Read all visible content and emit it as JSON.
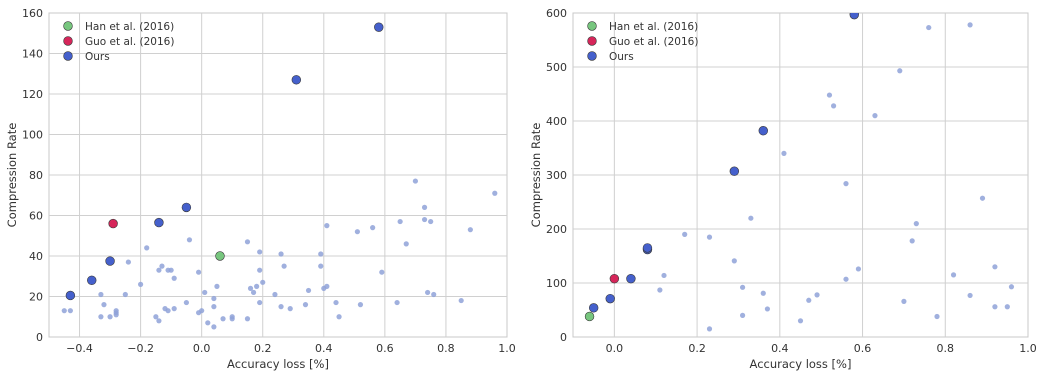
{
  "chart_data": [
    {
      "type": "scatter",
      "xlabel": "Accuracy loss [%]",
      "ylabel": "Compression Rate",
      "xlim": [
        -0.5,
        1.0
      ],
      "ylim": [
        0,
        160
      ],
      "xticks": [
        -0.4,
        -0.2,
        0.0,
        0.2,
        0.4,
        0.6,
        0.8,
        1.0
      ],
      "xtick_labels": [
        "−0.4",
        "−0.2",
        "0.0",
        "0.2",
        "0.4",
        "0.6",
        "0.8",
        "1.0"
      ],
      "yticks": [
        0,
        20,
        40,
        60,
        80,
        100,
        120,
        140,
        160
      ],
      "ytick_labels": [
        "0",
        "20",
        "40",
        "60",
        "80",
        "100",
        "120",
        "140",
        "160"
      ],
      "grid": true,
      "legend_position": "top-left",
      "legend": [
        {
          "label": "Han et al. (2016)",
          "color": "#77c67e"
        },
        {
          "label": "Guo et al. (2016)",
          "color": "#d6265a"
        },
        {
          "label": "Ours",
          "color": "#4560cc"
        }
      ],
      "background_points_color": "#8fa2d8",
      "background_points": [
        [
          -0.45,
          13
        ],
        [
          -0.43,
          13
        ],
        [
          -0.33,
          21
        ],
        [
          -0.32,
          16
        ],
        [
          -0.33,
          10
        ],
        [
          -0.3,
          10
        ],
        [
          -0.28,
          12
        ],
        [
          -0.28,
          11
        ],
        [
          -0.28,
          13
        ],
        [
          -0.25,
          21
        ],
        [
          -0.24,
          37
        ],
        [
          -0.2,
          26
        ],
        [
          -0.18,
          44
        ],
        [
          -0.15,
          10
        ],
        [
          -0.14,
          8
        ],
        [
          -0.14,
          33
        ],
        [
          -0.13,
          35
        ],
        [
          -0.12,
          14
        ],
        [
          -0.11,
          33
        ],
        [
          -0.11,
          13
        ],
        [
          -0.1,
          33
        ],
        [
          -0.09,
          29
        ],
        [
          -0.09,
          14
        ],
        [
          -0.05,
          17
        ],
        [
          -0.04,
          48
        ],
        [
          -0.01,
          32
        ],
        [
          -0.01,
          12
        ],
        [
          0.0,
          13
        ],
        [
          0.01,
          22
        ],
        [
          0.02,
          7
        ],
        [
          0.04,
          5
        ],
        [
          0.04,
          15
        ],
        [
          0.04,
          19
        ],
        [
          0.05,
          25
        ],
        [
          0.07,
          9
        ],
        [
          0.1,
          10
        ],
        [
          0.1,
          9
        ],
        [
          0.15,
          47
        ],
        [
          0.15,
          9
        ],
        [
          0.16,
          24
        ],
        [
          0.17,
          22
        ],
        [
          0.18,
          25
        ],
        [
          0.19,
          42
        ],
        [
          0.19,
          33
        ],
        [
          0.19,
          17
        ],
        [
          0.2,
          27
        ],
        [
          0.24,
          21
        ],
        [
          0.26,
          41
        ],
        [
          0.26,
          15
        ],
        [
          0.27,
          35
        ],
        [
          0.29,
          14
        ],
        [
          0.34,
          16
        ],
        [
          0.35,
          23
        ],
        [
          0.39,
          41
        ],
        [
          0.39,
          35
        ],
        [
          0.4,
          24
        ],
        [
          0.41,
          55
        ],
        [
          0.41,
          25
        ],
        [
          0.44,
          17
        ],
        [
          0.45,
          10
        ],
        [
          0.51,
          52
        ],
        [
          0.52,
          16
        ],
        [
          0.56,
          54
        ],
        [
          0.59,
          32
        ],
        [
          0.64,
          17
        ],
        [
          0.65,
          57
        ],
        [
          0.67,
          46
        ],
        [
          0.7,
          77
        ],
        [
          0.73,
          58
        ],
        [
          0.73,
          64
        ],
        [
          0.74,
          22
        ],
        [
          0.75,
          57
        ],
        [
          0.76,
          21
        ],
        [
          0.85,
          18
        ],
        [
          0.88,
          53
        ],
        [
          0.96,
          71
        ]
      ],
      "series": [
        {
          "name": "Han et al. (2016)",
          "points": [
            [
              0.06,
              40
            ]
          ]
        },
        {
          "name": "Guo et al. (2016)",
          "points": [
            [
              -0.29,
              56
            ]
          ]
        },
        {
          "name": "Ours",
          "points": [
            [
              -0.43,
              20.5
            ],
            [
              -0.36,
              28
            ],
            [
              -0.3,
              37.5
            ],
            [
              -0.14,
              56.5
            ],
            [
              -0.05,
              64
            ],
            [
              0.31,
              127
            ],
            [
              0.58,
              153
            ]
          ]
        }
      ]
    },
    {
      "type": "scatter",
      "xlabel": "Accuracy loss [%]",
      "ylabel": "Compression Rate",
      "xlim": [
        -0.1,
        1.0
      ],
      "ylim": [
        0,
        600
      ],
      "xticks": [
        0.0,
        0.2,
        0.4,
        0.6,
        0.8,
        1.0
      ],
      "xtick_labels": [
        "0.0",
        "0.2",
        "0.4",
        "0.6",
        "0.8",
        "1.0"
      ],
      "yticks": [
        0,
        100,
        200,
        300,
        400,
        500,
        600
      ],
      "ytick_labels": [
        "0",
        "100",
        "200",
        "300",
        "400",
        "500",
        "600"
      ],
      "grid": true,
      "legend_position": "top-left",
      "legend": [
        {
          "label": "Han et al. (2016)",
          "color": "#77c67e"
        },
        {
          "label": "Guo et al. (2016)",
          "color": "#d6265a"
        },
        {
          "label": "Ours",
          "color": "#4560cc"
        }
      ],
      "background_points_color": "#8fa2d8",
      "background_points": [
        [
          0.11,
          87
        ],
        [
          0.12,
          114
        ],
        [
          0.17,
          190
        ],
        [
          0.23,
          15
        ],
        [
          0.23,
          185
        ],
        [
          0.29,
          141
        ],
        [
          0.31,
          40
        ],
        [
          0.31,
          92
        ],
        [
          0.33,
          220
        ],
        [
          0.36,
          81
        ],
        [
          0.37,
          52
        ],
        [
          0.41,
          340
        ],
        [
          0.45,
          30
        ],
        [
          0.47,
          68
        ],
        [
          0.49,
          78
        ],
        [
          0.52,
          448
        ],
        [
          0.53,
          428
        ],
        [
          0.56,
          284
        ],
        [
          0.56,
          107
        ],
        [
          0.59,
          126
        ],
        [
          0.63,
          410
        ],
        [
          0.69,
          493
        ],
        [
          0.7,
          66
        ],
        [
          0.72,
          178
        ],
        [
          0.73,
          210
        ],
        [
          0.76,
          573
        ],
        [
          0.78,
          38
        ],
        [
          0.82,
          115
        ],
        [
          0.86,
          578
        ],
        [
          0.86,
          77
        ],
        [
          0.89,
          257
        ],
        [
          0.92,
          130
        ],
        [
          0.92,
          56
        ],
        [
          0.95,
          56
        ],
        [
          0.96,
          93
        ]
      ],
      "series": [
        {
          "name": "Han et al. (2016)",
          "points": [
            [
              -0.06,
              38
            ]
          ]
        },
        {
          "name": "Guo et al. (2016)",
          "points": [
            [
              0.0,
              108
            ]
          ]
        },
        {
          "name": "Ours",
          "points": [
            [
              -0.05,
              54
            ],
            [
              -0.01,
              71
            ],
            [
              0.04,
              108
            ],
            [
              0.08,
              162
            ],
            [
              0.08,
              165
            ],
            [
              0.29,
              307
            ],
            [
              0.36,
              382
            ],
            [
              0.58,
              597
            ]
          ]
        }
      ]
    }
  ]
}
